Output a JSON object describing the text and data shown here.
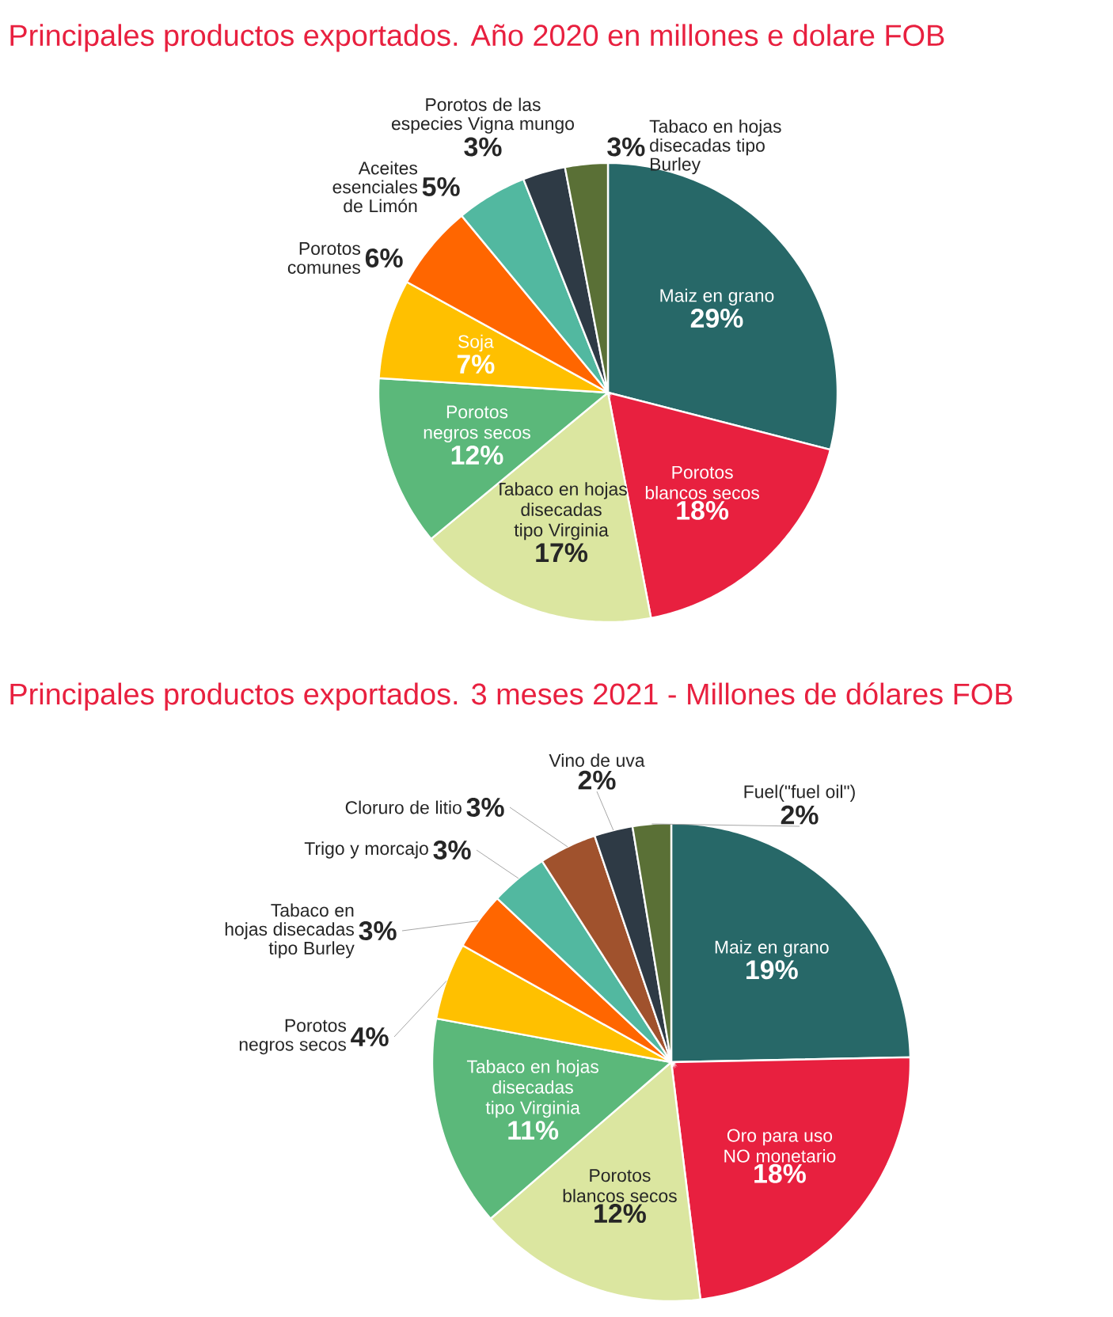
{
  "chart_data": [
    {
      "type": "pie",
      "title": "Principales productos exportados. Año  2020 en millones e dolare FOB",
      "categories": [
        "Maiz en grano",
        "Porotos blancos secos",
        "Tabaco en hojas disecadas tipo Virginia",
        "Porotos negros secos",
        "Soja",
        "Porotos comunes",
        "Aceites esenciales de Limón",
        "Porotos de las especies Vigna mungo",
        "Tabaco en hojas disecadas tipo Burley"
      ],
      "values": [
        29,
        18,
        17,
        12,
        7,
        6,
        5,
        3,
        3
      ],
      "value_labels": [
        "29%",
        "18%",
        "17%",
        "12%",
        "7%",
        "6%",
        "5%",
        "3%",
        "3%"
      ],
      "colors": [
        "#276868",
        "#e8203f",
        "#dbe6a0",
        "#5bb87a",
        "#ffc000",
        "#ff6600",
        "#52b8a0",
        "#2e3a45",
        "#5a7036"
      ]
    },
    {
      "type": "pie",
      "title": "Principales productos exportados. 3 meses 2021 - Millones de dólares FOB",
      "categories": [
        "Maiz en grano",
        "Oro para uso NO monetario",
        "Porotos  blancos secos",
        "Tabaco en hojas disecadas tipo Virginia",
        "Porotos negros secos",
        "Tabaco en hojas disecadas tipo Burley",
        "Trigo y morcajo",
        "Cloruro de litio",
        "Vino de uva",
        "Fuel(\"fuel oil\")"
      ],
      "values": [
        19,
        18,
        12,
        11,
        4,
        3,
        3,
        3,
        2,
        2
      ],
      "value_labels": [
        "19%",
        "18%",
        "12%",
        "11%",
        "4%",
        "3%",
        "3%",
        "3%",
        "2%",
        "2%"
      ],
      "colors": [
        "#276868",
        "#e8203f",
        "#dbe6a0",
        "#5bb87a",
        "#ffc000",
        "#ff6600",
        "#52b8a0",
        "#a0522d",
        "#2e3a45",
        "#5a7036"
      ]
    }
  ]
}
